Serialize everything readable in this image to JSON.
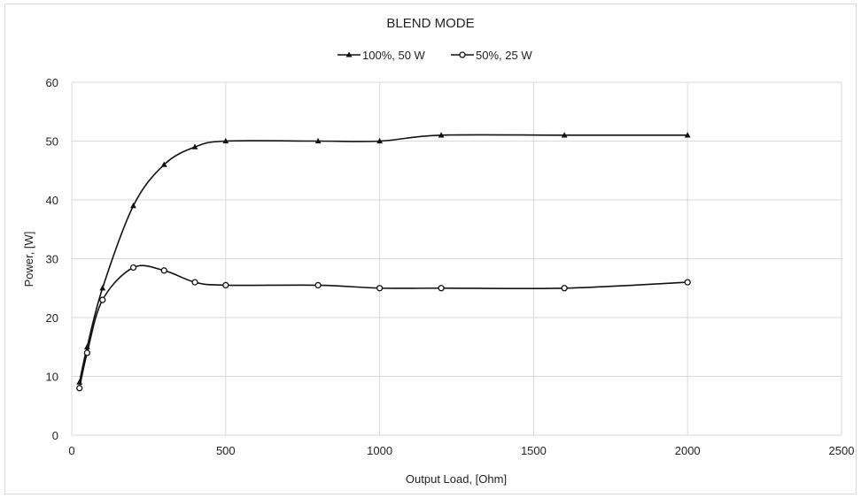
{
  "chart_data": {
    "type": "line",
    "title": "BLEND MODE",
    "xlabel": "Output Load, [Ohm]",
    "ylabel": "Power, [W]",
    "xlim": [
      0,
      2500
    ],
    "ylim": [
      0,
      60
    ],
    "xticks": [
      0,
      500,
      1000,
      1500,
      2000,
      2500
    ],
    "yticks": [
      0,
      10,
      20,
      30,
      40,
      50,
      60
    ],
    "grid": true,
    "legend_position": "top",
    "series": [
      {
        "name": "100%, 50 W",
        "marker": "triangle",
        "x": [
          25,
          50,
          100,
          200,
          300,
          400,
          500,
          800,
          1000,
          1200,
          1600,
          2000
        ],
        "y": [
          9,
          15,
          25,
          39,
          46,
          49,
          50,
          50,
          50,
          51,
          51,
          51
        ]
      },
      {
        "name": "50%, 25 W",
        "marker": "circle",
        "x": [
          25,
          50,
          100,
          200,
          300,
          400,
          500,
          800,
          1000,
          1200,
          1600,
          2000
        ],
        "y": [
          8,
          14,
          23,
          28.5,
          28,
          26,
          25.5,
          25.5,
          25,
          25,
          25,
          26
        ]
      }
    ]
  }
}
